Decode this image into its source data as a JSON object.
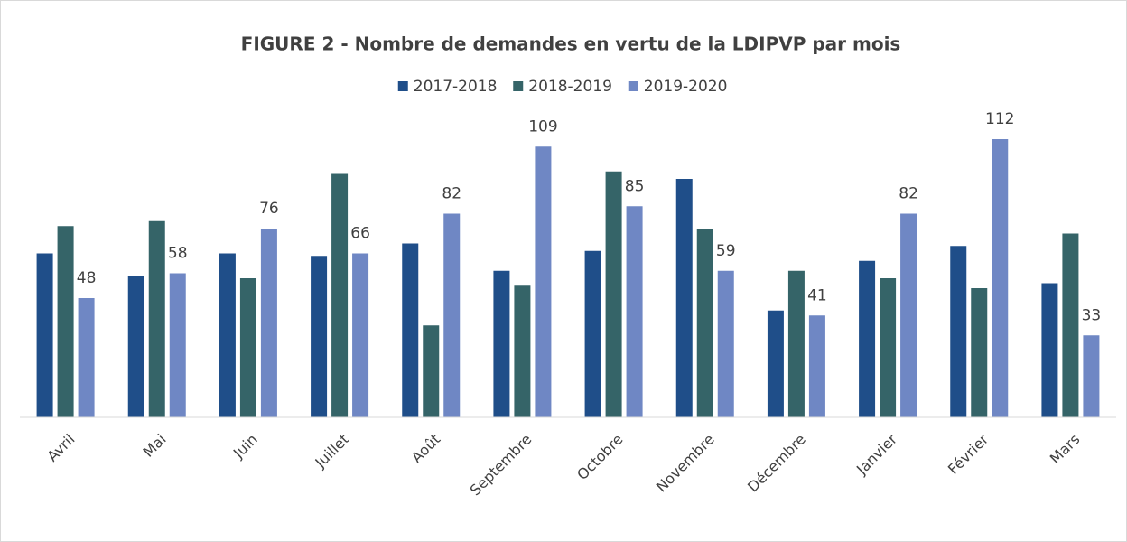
{
  "chart_data": {
    "type": "bar",
    "title": "FIGURE 2 - Nombre de demandes en vertu de la LDIPVP par mois",
    "categories": [
      "Avril",
      "Mai",
      "Juin",
      "Juillet",
      "Août",
      "Septembre",
      "Octobre",
      "Novembre",
      "Décembre",
      "Janvier",
      "Février",
      "Mars"
    ],
    "series": [
      {
        "name": "2017-2018",
        "color": "#1f4e89",
        "values": [
          66,
          57,
          66,
          65,
          70,
          59,
          67,
          96,
          43,
          63,
          69,
          54
        ]
      },
      {
        "name": "2018-2019",
        "color": "#356468",
        "values": [
          77,
          79,
          56,
          98,
          37,
          53,
          99,
          76,
          59,
          56,
          52,
          74
        ]
      },
      {
        "name": "2019-2020",
        "color": "#6f87c4",
        "values": [
          48,
          58,
          76,
          66,
          82,
          109,
          85,
          59,
          41,
          82,
          112,
          33
        ],
        "show_labels": true
      }
    ],
    "ylim": [
      0,
      120
    ],
    "grid": false,
    "legend": "top"
  }
}
